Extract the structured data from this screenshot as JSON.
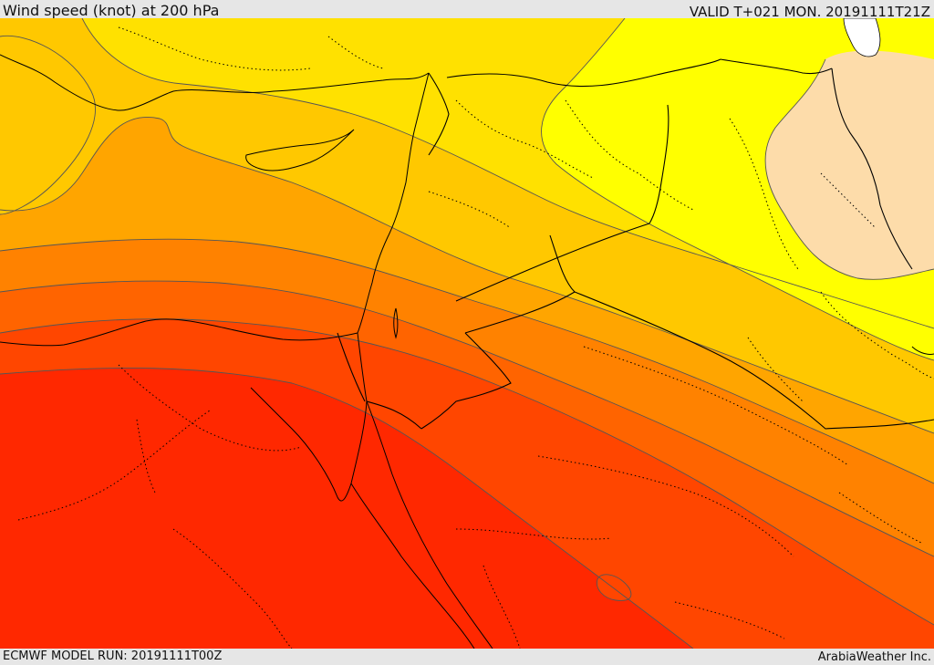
{
  "header": {
    "title": "Wind speed (knot) at 200 hPa",
    "valid": "VALID T+021 MON. 20191111T21Z"
  },
  "footer": {
    "model_run": "ECMWF MODEL RUN: 20191111T00Z",
    "credit": "ArabiaWeather Inc."
  },
  "colors": {
    "band_1": "#fddcaa",
    "band_2": "#ffff00",
    "band_3": "#ffe100",
    "band_4": "#ffc800",
    "band_5": "#ffa500",
    "band_6": "#ff8200",
    "band_7": "#ff6400",
    "band_8": "#ff4600",
    "band_9": "#ff2800",
    "land_mask": "#ffffff",
    "coastline": "#000000",
    "border_dotted": "#000000"
  }
}
